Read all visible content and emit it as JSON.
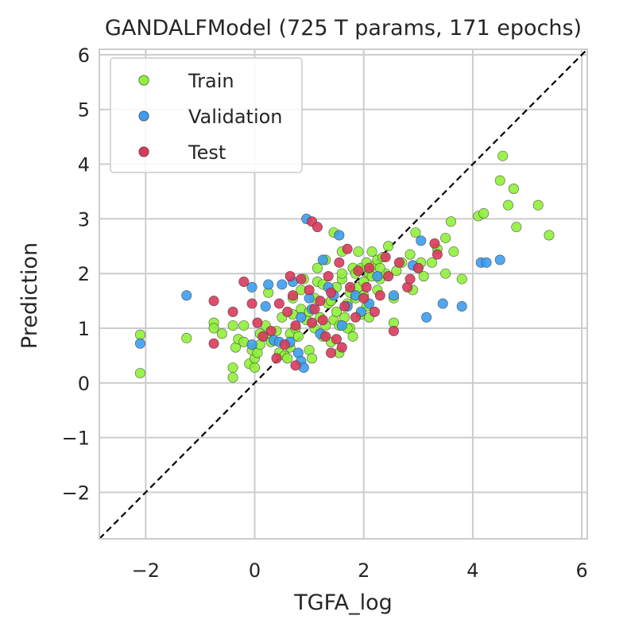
{
  "chart_data": {
    "type": "scatter",
    "title": "GANDALFModel (725 T params, 171 epochs)",
    "xlabel": "TGFA_log",
    "ylabel": "Prediction",
    "xlim": [
      -2.85,
      6.1
    ],
    "ylim": [
      -2.85,
      6.1
    ],
    "xticks": [
      -2,
      0,
      2,
      4,
      6
    ],
    "yticks": [
      -2,
      -1,
      0,
      1,
      2,
      3,
      4,
      5,
      6
    ],
    "xtick_labels": [
      "−2",
      "0",
      "2",
      "4",
      "6"
    ],
    "ytick_labels": [
      "−2",
      "−1",
      "0",
      "1",
      "2",
      "3",
      "4",
      "5",
      "6"
    ],
    "grid": true,
    "legend_position": "top-left",
    "reference_line": {
      "type": "identity",
      "style": "dashed",
      "color": "#000000"
    },
    "series": [
      {
        "name": "Train",
        "color": "#90f03a",
        "points": [
          [
            -2.1,
            0.88
          ],
          [
            -2.1,
            0.18
          ],
          [
            -1.25,
            0.82
          ],
          [
            -0.75,
            1.1
          ],
          [
            -0.75,
            1.0
          ],
          [
            -0.6,
            0.9
          ],
          [
            -0.4,
            0.28
          ],
          [
            -0.4,
            0.1
          ],
          [
            -0.4,
            1.05
          ],
          [
            -0.35,
            0.65
          ],
          [
            -0.3,
            0.8
          ],
          [
            -0.2,
            0.75
          ],
          [
            -0.2,
            1.05
          ],
          [
            -0.1,
            0.35
          ],
          [
            0.0,
            0.28
          ],
          [
            0.0,
            0.45
          ],
          [
            -0.05,
            0.6
          ],
          [
            0.05,
            0.55
          ],
          [
            0.1,
            0.7
          ],
          [
            0.1,
            0.9
          ],
          [
            0.2,
            0.85
          ],
          [
            0.2,
            1.05
          ],
          [
            0.25,
            1.65
          ],
          [
            0.3,
            0.75
          ],
          [
            0.4,
            0.95
          ],
          [
            0.45,
            0.55
          ],
          [
            0.5,
            1.2
          ],
          [
            0.55,
            0.5
          ],
          [
            0.6,
            0.45
          ],
          [
            0.65,
            0.9
          ],
          [
            0.65,
            0.65
          ],
          [
            0.7,
            1.55
          ],
          [
            0.7,
            1.25
          ],
          [
            0.75,
            1.0
          ],
          [
            0.8,
            0.85
          ],
          [
            0.85,
            1.35
          ],
          [
            0.85,
            1.7
          ],
          [
            0.9,
            1.9
          ],
          [
            0.95,
            1.15
          ],
          [
            1.0,
            1.3
          ],
          [
            1.0,
            0.6
          ],
          [
            1.05,
            0.45
          ],
          [
            1.1,
            1.0
          ],
          [
            1.1,
            1.55
          ],
          [
            1.15,
            1.85
          ],
          [
            1.15,
            2.1
          ],
          [
            1.2,
            1.2
          ],
          [
            1.25,
            0.85
          ],
          [
            1.25,
            1.8
          ],
          [
            1.3,
            1.05
          ],
          [
            1.3,
            2.25
          ],
          [
            1.35,
            1.45
          ],
          [
            1.4,
            1.5
          ],
          [
            1.4,
            0.75
          ],
          [
            1.45,
            1.15
          ],
          [
            1.45,
            2.75
          ],
          [
            1.5,
            1.75
          ],
          [
            1.5,
            1.3
          ],
          [
            1.55,
            1.05
          ],
          [
            1.55,
            0.55
          ],
          [
            1.6,
            1.9
          ],
          [
            1.6,
            2.4
          ],
          [
            1.65,
            1.2
          ],
          [
            1.7,
            1.45
          ],
          [
            1.75,
            1.0
          ],
          [
            1.75,
            1.65
          ],
          [
            1.8,
            2.1
          ],
          [
            1.8,
            0.85
          ],
          [
            1.85,
            1.55
          ],
          [
            1.85,
            2.0
          ],
          [
            1.9,
            2.4
          ],
          [
            1.9,
            1.75
          ],
          [
            1.95,
            1.25
          ],
          [
            1.95,
            2.1
          ],
          [
            2.0,
            1.85
          ],
          [
            2.0,
            1.6
          ],
          [
            2.05,
            2.2
          ],
          [
            2.05,
            1.4
          ],
          [
            2.1,
            2.0
          ],
          [
            2.1,
            1.2
          ],
          [
            2.15,
            2.4
          ],
          [
            2.15,
            1.95
          ],
          [
            2.2,
            2.15
          ],
          [
            2.25,
            1.7
          ],
          [
            2.25,
            2.25
          ],
          [
            2.3,
            1.9
          ],
          [
            2.35,
            2.3
          ],
          [
            2.4,
            2.0
          ],
          [
            2.45,
            2.5
          ],
          [
            2.55,
            1.55
          ],
          [
            2.55,
            1.1
          ],
          [
            2.6,
            2.05
          ],
          [
            2.7,
            2.2
          ],
          [
            2.85,
            2.35
          ],
          [
            2.9,
            1.7
          ],
          [
            2.95,
            2.75
          ],
          [
            3.0,
            2.1
          ],
          [
            3.05,
            2.2
          ],
          [
            3.1,
            1.95
          ],
          [
            3.25,
            2.2
          ],
          [
            3.35,
            2.45
          ],
          [
            3.5,
            2.0
          ],
          [
            3.5,
            2.65
          ],
          [
            3.6,
            2.95
          ],
          [
            3.65,
            2.4
          ],
          [
            3.8,
            1.9
          ],
          [
            4.1,
            3.05
          ],
          [
            4.2,
            3.1
          ],
          [
            4.5,
            3.7
          ],
          [
            4.55,
            4.15
          ],
          [
            4.65,
            3.25
          ],
          [
            4.75,
            3.55
          ],
          [
            4.8,
            2.85
          ],
          [
            5.2,
            3.25
          ],
          [
            5.4,
            2.7
          ],
          [
            1.6,
            2.0
          ],
          [
            1.7,
            1.0
          ],
          [
            2.3,
            2.1
          ]
        ]
      },
      {
        "name": "Validation",
        "color": "#3d9df0",
        "points": [
          [
            -2.1,
            0.72
          ],
          [
            -1.25,
            1.6
          ],
          [
            -0.05,
            1.75
          ],
          [
            -0.05,
            0.7
          ],
          [
            0.25,
            1.8
          ],
          [
            0.35,
            0.78
          ],
          [
            0.45,
            0.75
          ],
          [
            0.5,
            1.8
          ],
          [
            0.65,
            0.75
          ],
          [
            0.7,
            1.85
          ],
          [
            0.8,
            0.55
          ],
          [
            0.85,
            1.2
          ],
          [
            0.85,
            0.4
          ],
          [
            0.9,
            0.28
          ],
          [
            0.95,
            3.0
          ],
          [
            1.0,
            1.55
          ],
          [
            1.05,
            1.35
          ],
          [
            1.25,
            2.25
          ],
          [
            1.35,
            1.75
          ],
          [
            1.45,
            1.6
          ],
          [
            1.55,
            2.7
          ],
          [
            1.6,
            1.05
          ],
          [
            1.7,
            1.4
          ],
          [
            1.85,
            1.6
          ],
          [
            1.95,
            1.3
          ],
          [
            2.1,
            1.45
          ],
          [
            2.25,
            1.95
          ],
          [
            2.55,
            1.6
          ],
          [
            2.9,
            2.15
          ],
          [
            3.05,
            2.6
          ],
          [
            3.15,
            1.2
          ],
          [
            3.45,
            1.45
          ],
          [
            3.8,
            1.4
          ],
          [
            4.15,
            2.2
          ],
          [
            4.25,
            2.2
          ],
          [
            4.5,
            2.25
          ],
          [
            1.2,
            0.9
          ],
          [
            0.2,
            1.4
          ]
        ]
      },
      {
        "name": "Test",
        "color": "#d93a5c",
        "points": [
          [
            -0.75,
            1.5
          ],
          [
            -0.75,
            0.72
          ],
          [
            -0.4,
            1.3
          ],
          [
            -0.2,
            1.85
          ],
          [
            -0.05,
            1.45
          ],
          [
            0.05,
            1.1
          ],
          [
            0.15,
            0.85
          ],
          [
            0.3,
            0.95
          ],
          [
            0.4,
            0.45
          ],
          [
            0.45,
            1.45
          ],
          [
            0.55,
            0.7
          ],
          [
            0.6,
            1.3
          ],
          [
            0.65,
            1.95
          ],
          [
            0.7,
            1.6
          ],
          [
            0.75,
            1.05
          ],
          [
            0.75,
            0.32
          ],
          [
            0.85,
            1.9
          ],
          [
            1.0,
            1.7
          ],
          [
            1.05,
            2.95
          ],
          [
            1.1,
            1.35
          ],
          [
            1.15,
            2.85
          ],
          [
            1.2,
            1.5
          ],
          [
            1.25,
            1.15
          ],
          [
            1.3,
            0.85
          ],
          [
            1.35,
            1.95
          ],
          [
            1.4,
            0.55
          ],
          [
            1.4,
            1.65
          ],
          [
            1.5,
            0.8
          ],
          [
            1.55,
            2.2
          ],
          [
            1.65,
            1.4
          ],
          [
            1.7,
            2.45
          ],
          [
            1.75,
            1.75
          ],
          [
            1.85,
            1.2
          ],
          [
            1.9,
            2.05
          ],
          [
            2.0,
            1.55
          ],
          [
            2.05,
            1.75
          ],
          [
            2.1,
            2.1
          ],
          [
            2.2,
            1.3
          ],
          [
            2.3,
            1.6
          ],
          [
            2.4,
            2.3
          ],
          [
            2.45,
            1.95
          ],
          [
            2.55,
            0.95
          ],
          [
            2.8,
            1.75
          ],
          [
            2.85,
            1.9
          ],
          [
            3.0,
            2.1
          ],
          [
            3.35,
            2.35
          ],
          [
            3.3,
            2.55
          ],
          [
            2.65,
            2.2
          ],
          [
            1.05,
            1.1
          ],
          [
            1.6,
            0.65
          ]
        ]
      }
    ]
  }
}
